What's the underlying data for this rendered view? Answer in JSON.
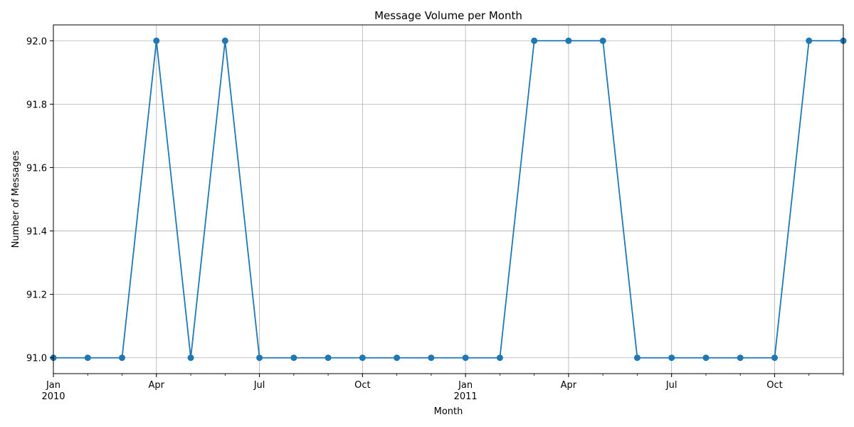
{
  "chart_data": {
    "type": "line",
    "title": "Message Volume per Month",
    "xlabel": "Month",
    "ylabel": "Number of Messages",
    "x": [
      "2010-01",
      "2010-02",
      "2010-03",
      "2010-04",
      "2010-05",
      "2010-06",
      "2010-07",
      "2010-08",
      "2010-09",
      "2010-10",
      "2010-11",
      "2010-12",
      "2011-01",
      "2011-02",
      "2011-03",
      "2011-04",
      "2011-05",
      "2011-06",
      "2011-07",
      "2011-08",
      "2011-09",
      "2011-10",
      "2011-11",
      "2011-12"
    ],
    "series": [
      {
        "color": "#1f77b4",
        "marker": "circle",
        "values": [
          91,
          91,
          91,
          92,
          91,
          92,
          91,
          91,
          91,
          91,
          91,
          91,
          91,
          91,
          92,
          92,
          92,
          91,
          91,
          91,
          91,
          91,
          92,
          92
        ]
      }
    ],
    "ylim": [
      90.95,
      92.05
    ],
    "yticks": [
      "91.0",
      "91.2",
      "91.4",
      "91.6",
      "91.8",
      "92.0"
    ],
    "xticks_major": [
      {
        "x": "2010-01",
        "label": "Jan",
        "sublabel": "2010"
      },
      {
        "x": "2010-04",
        "label": "Apr"
      },
      {
        "x": "2010-07",
        "label": "Jul"
      },
      {
        "x": "2010-10",
        "label": "Oct"
      },
      {
        "x": "2011-01",
        "label": "Jan",
        "sublabel": "2011"
      },
      {
        "x": "2011-04",
        "label": "Apr"
      },
      {
        "x": "2011-07",
        "label": "Jul"
      },
      {
        "x": "2011-10",
        "label": "Oct"
      }
    ],
    "grid": true
  }
}
